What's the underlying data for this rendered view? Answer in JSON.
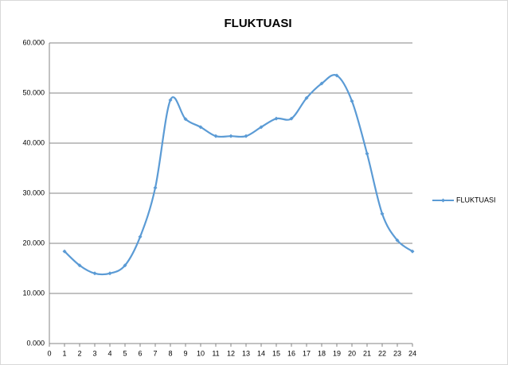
{
  "chart_data": {
    "type": "line",
    "title": "FLUKTUASI",
    "x": [
      1,
      2,
      3,
      4,
      5,
      6,
      7,
      8,
      9,
      10,
      11,
      12,
      13,
      14,
      15,
      16,
      17,
      18,
      19,
      20,
      21,
      22,
      23,
      24
    ],
    "series": [
      {
        "name": "FLUKTUASI",
        "color": "#5b9bd5",
        "values": [
          18400,
          15600,
          14000,
          14000,
          15600,
          21300,
          31100,
          48600,
          44800,
          43200,
          41400,
          41400,
          41400,
          43200,
          44900,
          44900,
          49000,
          51900,
          53500,
          48400,
          37900,
          25900,
          20600,
          18400
        ]
      }
    ],
    "xlim": [
      0,
      24
    ],
    "xticks": [
      0,
      1,
      2,
      3,
      4,
      5,
      6,
      7,
      8,
      9,
      10,
      11,
      12,
      13,
      14,
      15,
      16,
      17,
      18,
      19,
      20,
      21,
      22,
      23,
      24
    ],
    "ylim": [
      0,
      60000
    ],
    "yticks": [
      {
        "value": 0,
        "label": "0.000"
      },
      {
        "value": 10000,
        "label": "10.000"
      },
      {
        "value": 20000,
        "label": "20.000"
      },
      {
        "value": 30000,
        "label": "30.000"
      },
      {
        "value": 40000,
        "label": "40.000"
      },
      {
        "value": 50000,
        "label": "50.000"
      },
      {
        "value": 60000,
        "label": "60.000"
      }
    ],
    "grid": true,
    "smooth": true,
    "legend": "right"
  }
}
